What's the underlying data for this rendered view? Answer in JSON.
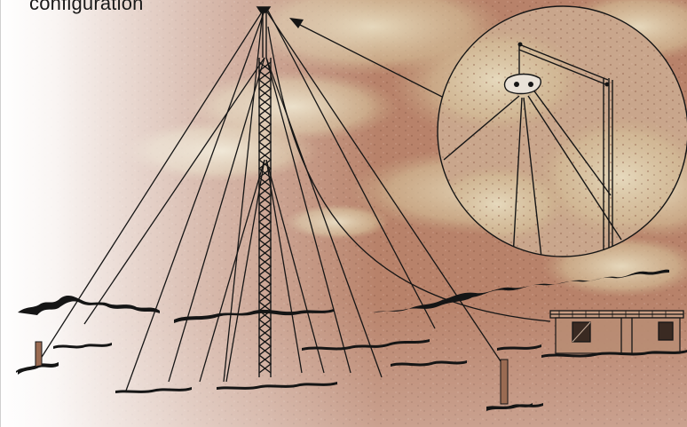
{
  "caption": {
    "text": "configuration"
  },
  "colors": {
    "ground": "#b8826a",
    "ground_dark": "#8f5a44",
    "shrub": "#d9c6a0",
    "line": "#151515",
    "fade": "#ffffff"
  },
  "icons": [
    "antenna-mast-icon",
    "guy-anchor-icon",
    "equipment-hut-icon",
    "magnified-detail-icon",
    "pointer-arrow-icon"
  ]
}
